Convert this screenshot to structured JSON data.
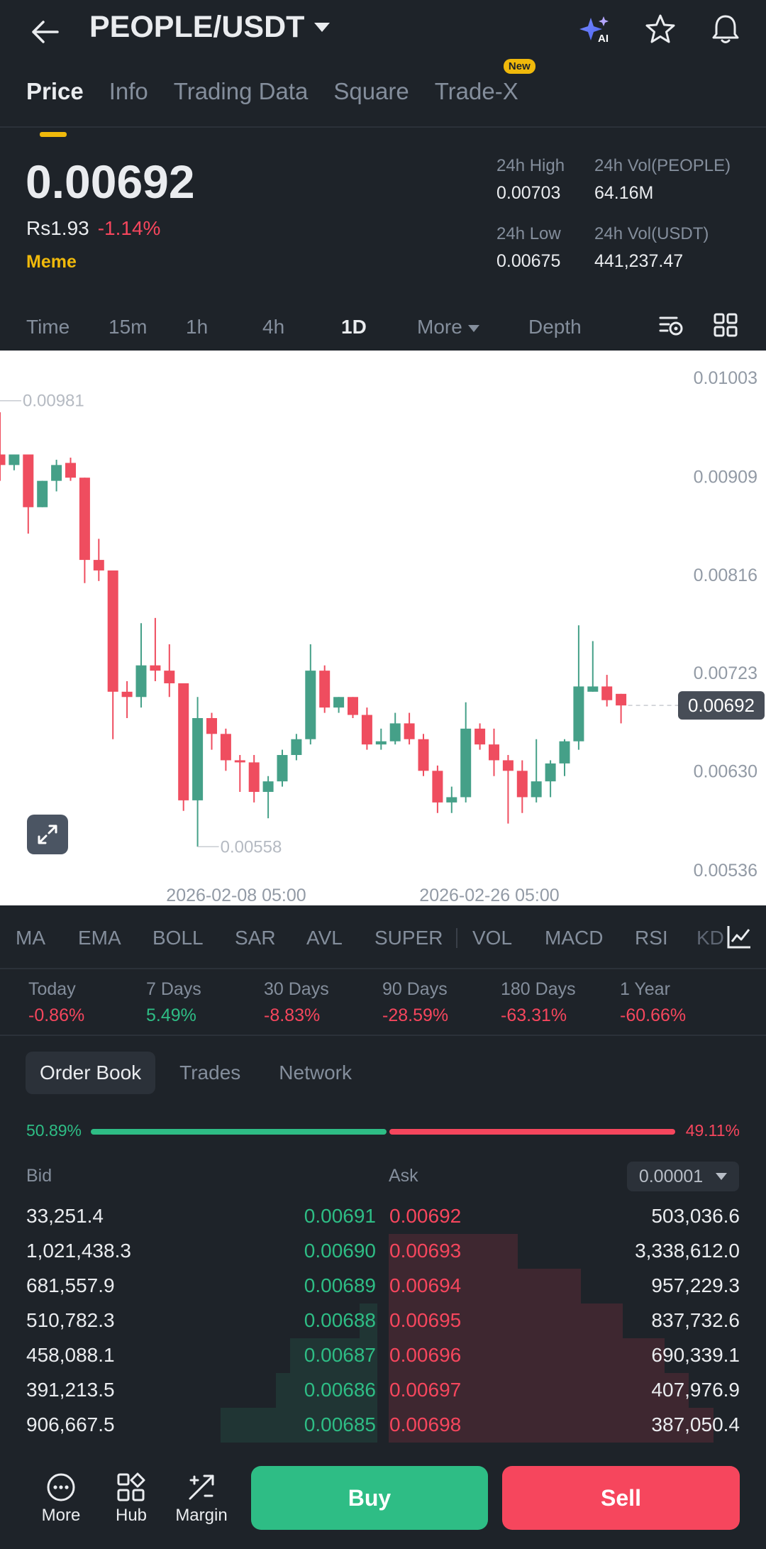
{
  "header": {
    "pair": "PEOPLE/USDT",
    "tabs": [
      {
        "label": "Price",
        "active": true
      },
      {
        "label": "Info"
      },
      {
        "label": "Trading Data"
      },
      {
        "label": "Square"
      },
      {
        "label": "Trade-X",
        "badge": "New"
      }
    ],
    "icons": [
      "back-arrow-icon",
      "ai-sparkle-icon",
      "star-icon",
      "bell-icon"
    ]
  },
  "summary": {
    "price": "0.00692",
    "fiat_price": "Rs1.93",
    "change": "-1.14%",
    "category": "Meme",
    "high_label": "24h High",
    "high_value": "0.00703",
    "vol_base_label": "24h Vol(PEOPLE)",
    "vol_base_value": "64.16M",
    "low_label": "24h Low",
    "low_value": "0.00675",
    "vol_quote_label": "24h Vol(USDT)",
    "vol_quote_value": "441,237.47"
  },
  "intervals": {
    "time": "Time",
    "m15": "15m",
    "h1": "1h",
    "h4": "4h",
    "d1": "1D",
    "more": "More",
    "depth": "Depth",
    "active": "1D"
  },
  "chart_data": {
    "type": "candlestick",
    "y_axis_ticks": [
      "0.01003",
      "0.00909",
      "0.00816",
      "0.00723",
      "0.00630",
      "0.00536"
    ],
    "ylim": [
      0.00536,
      0.01003
    ],
    "x_axis_ticks": [
      "2026-02-08 05:00",
      "2026-02-26 05:00"
    ],
    "current_price_label": "0.00692",
    "high_marker": "0.00981",
    "low_marker": "0.00558",
    "colors": {
      "up": "#45a088",
      "down": "#ef4d5f"
    },
    "candles": [
      {
        "o": 0.0093,
        "h": 0.0097,
        "l": 0.00905,
        "c": 0.0092
      },
      {
        "o": 0.0092,
        "h": 0.0093,
        "l": 0.00915,
        "c": 0.0093
      },
      {
        "o": 0.0093,
        "h": 0.0093,
        "l": 0.00855,
        "c": 0.0088
      },
      {
        "o": 0.0088,
        "h": 0.00905,
        "l": 0.0088,
        "c": 0.00905
      },
      {
        "o": 0.00905,
        "h": 0.00925,
        "l": 0.00895,
        "c": 0.0092
      },
      {
        "o": 0.00922,
        "h": 0.00927,
        "l": 0.00905,
        "c": 0.00908
      },
      {
        "o": 0.00908,
        "h": 0.00908,
        "l": 0.00808,
        "c": 0.0083
      },
      {
        "o": 0.0083,
        "h": 0.0085,
        "l": 0.0081,
        "c": 0.0082
      },
      {
        "o": 0.0082,
        "h": 0.0082,
        "l": 0.0066,
        "c": 0.00705
      },
      {
        "o": 0.00705,
        "h": 0.00715,
        "l": 0.0068,
        "c": 0.007
      },
      {
        "o": 0.007,
        "h": 0.0077,
        "l": 0.0069,
        "c": 0.0073
      },
      {
        "o": 0.0073,
        "h": 0.00775,
        "l": 0.00715,
        "c": 0.00725
      },
      {
        "o": 0.00725,
        "h": 0.0075,
        "l": 0.007,
        "c": 0.00713
      },
      {
        "o": 0.00713,
        "h": 0.00713,
        "l": 0.00592,
        "c": 0.00602
      },
      {
        "o": 0.00602,
        "h": 0.007,
        "l": 0.00558,
        "c": 0.0068
      },
      {
        "o": 0.0068,
        "h": 0.00685,
        "l": 0.0065,
        "c": 0.00665
      },
      {
        "o": 0.00665,
        "h": 0.0067,
        "l": 0.0063,
        "c": 0.0064
      },
      {
        "o": 0.0064,
        "h": 0.00645,
        "l": 0.0061,
        "c": 0.00638
      },
      {
        "o": 0.00638,
        "h": 0.00645,
        "l": 0.006,
        "c": 0.0061
      },
      {
        "o": 0.0061,
        "h": 0.00625,
        "l": 0.00585,
        "c": 0.0062
      },
      {
        "o": 0.0062,
        "h": 0.0065,
        "l": 0.00615,
        "c": 0.00645
      },
      {
        "o": 0.00645,
        "h": 0.00665,
        "l": 0.0064,
        "c": 0.0066
      },
      {
        "o": 0.0066,
        "h": 0.0075,
        "l": 0.00655,
        "c": 0.00725
      },
      {
        "o": 0.00725,
        "h": 0.0073,
        "l": 0.00685,
        "c": 0.0069
      },
      {
        "o": 0.0069,
        "h": 0.007,
        "l": 0.00685,
        "c": 0.007
      },
      {
        "o": 0.007,
        "h": 0.007,
        "l": 0.0068,
        "c": 0.00683
      },
      {
        "o": 0.00683,
        "h": 0.0069,
        "l": 0.0065,
        "c": 0.00655
      },
      {
        "o": 0.00655,
        "h": 0.0067,
        "l": 0.0065,
        "c": 0.00658
      },
      {
        "o": 0.00658,
        "h": 0.00685,
        "l": 0.00655,
        "c": 0.00675
      },
      {
        "o": 0.00675,
        "h": 0.00685,
        "l": 0.00655,
        "c": 0.0066
      },
      {
        "o": 0.0066,
        "h": 0.00665,
        "l": 0.00625,
        "c": 0.0063
      },
      {
        "o": 0.0063,
        "h": 0.00635,
        "l": 0.0059,
        "c": 0.006
      },
      {
        "o": 0.006,
        "h": 0.00615,
        "l": 0.0059,
        "c": 0.00605
      },
      {
        "o": 0.00605,
        "h": 0.00695,
        "l": 0.006,
        "c": 0.0067
      },
      {
        "o": 0.0067,
        "h": 0.00675,
        "l": 0.0065,
        "c": 0.00655
      },
      {
        "o": 0.00655,
        "h": 0.0067,
        "l": 0.00625,
        "c": 0.0064
      },
      {
        "o": 0.0064,
        "h": 0.00645,
        "l": 0.0058,
        "c": 0.0063
      },
      {
        "o": 0.0063,
        "h": 0.0064,
        "l": 0.0059,
        "c": 0.00605
      },
      {
        "o": 0.00605,
        "h": 0.0066,
        "l": 0.006,
        "c": 0.0062
      },
      {
        "o": 0.0062,
        "h": 0.0064,
        "l": 0.00605,
        "c": 0.00637
      },
      {
        "o": 0.00637,
        "h": 0.0066,
        "l": 0.00625,
        "c": 0.00658
      },
      {
        "o": 0.00658,
        "h": 0.00768,
        "l": 0.0065,
        "c": 0.0071
      },
      {
        "o": 0.00705,
        "h": 0.00753,
        "l": 0.00705,
        "c": 0.0071
      },
      {
        "o": 0.0071,
        "h": 0.00721,
        "l": 0.00691,
        "c": 0.00697
      },
      {
        "o": 0.00703,
        "h": 0.00703,
        "l": 0.00675,
        "c": 0.00692
      }
    ]
  },
  "indicators": [
    "MA",
    "EMA",
    "BOLL",
    "SAR",
    "AVL",
    "SUPER",
    "VOL",
    "MACD",
    "RSI",
    "KD"
  ],
  "performance": [
    {
      "label": "Today",
      "value": "-0.86%",
      "dir": "down"
    },
    {
      "label": "7 Days",
      "value": "5.49%",
      "dir": "up"
    },
    {
      "label": "30 Days",
      "value": "-8.83%",
      "dir": "down"
    },
    {
      "label": "90 Days",
      "value": "-28.59%",
      "dir": "down"
    },
    {
      "label": "180 Days",
      "value": "-63.31%",
      "dir": "down"
    },
    {
      "label": "1 Year",
      "value": "-60.66%",
      "dir": "down"
    }
  ],
  "orderbook": {
    "tabs": [
      "Order Book",
      "Trades",
      "Network"
    ],
    "bid_ratio": "50.89%",
    "ask_ratio": "49.11%",
    "bid_ratio_value": 0.5089,
    "bid_label": "Bid",
    "ask_label": "Ask",
    "precision": "0.00001",
    "rows": [
      {
        "bid_qty": "33,251.4",
        "bid_price": "0.00691",
        "ask_price": "0.00692",
        "ask_qty": "503,036.6",
        "bid_depth": 0.0,
        "ask_depth": 0.0
      },
      {
        "bid_qty": "1,021,438.3",
        "bid_price": "0.00690",
        "ask_price": "0.00693",
        "ask_qty": "3,338,612.0",
        "bid_depth": 0.0,
        "ask_depth": 0.37
      },
      {
        "bid_qty": "681,557.9",
        "bid_price": "0.00689",
        "ask_price": "0.00694",
        "ask_qty": "957,229.3",
        "bid_depth": 0.0,
        "ask_depth": 0.55
      },
      {
        "bid_qty": "510,782.3",
        "bid_price": "0.00688",
        "ask_price": "0.00695",
        "ask_qty": "837,732.6",
        "bid_depth": 0.05,
        "ask_depth": 0.67
      },
      {
        "bid_qty": "458,088.1",
        "bid_price": "0.00687",
        "ask_price": "0.00696",
        "ask_qty": "690,339.1",
        "bid_depth": 0.25,
        "ask_depth": 0.79
      },
      {
        "bid_qty": "391,213.5",
        "bid_price": "0.00686",
        "ask_price": "0.00697",
        "ask_qty": "407,976.9",
        "bid_depth": 0.29,
        "ask_depth": 0.86
      },
      {
        "bid_qty": "906,667.5",
        "bid_price": "0.00685",
        "ask_price": "0.00698",
        "ask_qty": "387,050.4",
        "bid_depth": 0.45,
        "ask_depth": 0.93
      }
    ]
  },
  "bottom_bar": {
    "more": "More",
    "hub": "Hub",
    "margin": "Margin",
    "buy": "Buy",
    "sell": "Sell"
  }
}
